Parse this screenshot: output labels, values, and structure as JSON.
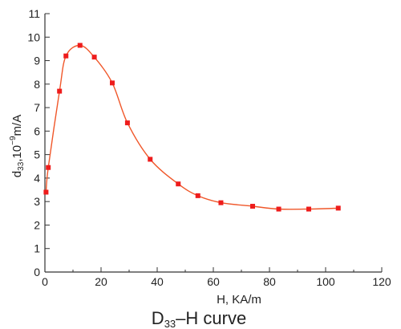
{
  "chart_data": {
    "type": "scatter",
    "xlabel": "H, KA/m",
    "ylabel": "d33,10-9m/A",
    "caption": "D33-H curve",
    "xlim": [
      0,
      120
    ],
    "ylim": [
      0,
      11
    ],
    "xticks": [
      0,
      20,
      40,
      60,
      80,
      100,
      120
    ],
    "yticks": [
      0,
      1,
      2,
      3,
      4,
      5,
      6,
      7,
      8,
      9,
      10,
      11
    ],
    "grid": false,
    "colors": {
      "points": "#ee1c1c",
      "curve": "#f0572a",
      "axis": "#333333"
    },
    "series": [
      {
        "x": [
          0.4,
          1.2,
          5.2,
          7.5,
          12.5,
          17.6,
          24.0,
          29.4,
          37.5,
          47.5,
          54.5,
          62.7,
          74.0,
          83.3,
          94.0,
          104.5
        ],
        "y": [
          3.4,
          4.45,
          7.7,
          9.2,
          9.65,
          9.15,
          8.05,
          6.35,
          4.8,
          3.75,
          3.25,
          2.95,
          2.8,
          2.68,
          2.68,
          2.72
        ]
      }
    ]
  }
}
